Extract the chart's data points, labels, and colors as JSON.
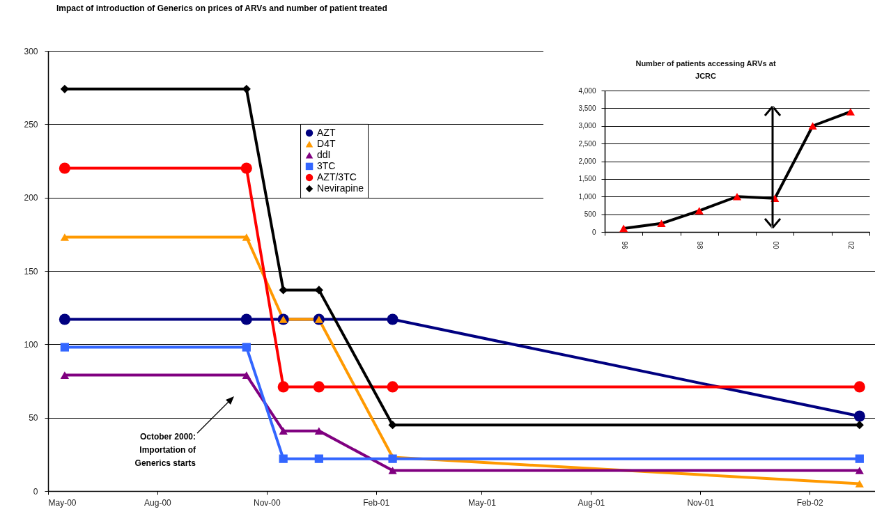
{
  "chart_data": [
    {
      "type": "line",
      "title": "Impact of introduction of Generics on prices of ARVs and number of patient treated",
      "x": [
        "2000-05-15",
        "2000-10-15",
        "2000-11-15",
        "2000-12-15",
        "2001-02-15",
        "2002-03-15"
      ],
      "xlim": [
        "2000-05-01",
        "2002-03-28"
      ],
      "xticks": [
        {
          "value": "2000-05-01",
          "label": "May-00"
        },
        {
          "value": "2000-08-01",
          "label": "Aug-00"
        },
        {
          "value": "2000-11-01",
          "label": "Nov-00"
        },
        {
          "value": "2001-02-01",
          "label": "Feb-01"
        },
        {
          "value": "2001-05-01",
          "label": "May-01"
        },
        {
          "value": "2001-08-01",
          "label": "Aug-01"
        },
        {
          "value": "2001-11-01",
          "label": "Nov-01"
        },
        {
          "value": "2002-02-01",
          "label": "Feb-02"
        }
      ],
      "ylim": [
        0,
        300
      ],
      "yticks": [
        0,
        50,
        100,
        150,
        200,
        250,
        300
      ],
      "grid": "y",
      "legend": "top",
      "line_style": "solid",
      "series": [
        {
          "name": "AZT",
          "color": "#000080",
          "marker": "circle",
          "values": [
            117,
            117,
            117,
            117,
            117,
            51
          ]
        },
        {
          "name": "D4T",
          "color": "#ff9900",
          "marker": "triangle",
          "values": [
            173,
            173,
            117,
            117,
            23,
            5
          ]
        },
        {
          "name": "ddI",
          "color": "#800080",
          "marker": "triangle",
          "values": [
            79,
            79,
            41,
            41,
            14,
            14
          ]
        },
        {
          "name": "3TC",
          "color": "#3366ff",
          "marker": "square",
          "values": [
            98,
            98,
            22,
            22,
            22,
            22
          ]
        },
        {
          "name": "AZT/3TC",
          "color": "#ff0000",
          "marker": "circle",
          "values": [
            220,
            220,
            71,
            71,
            71,
            71
          ]
        },
        {
          "name": "Nevirapine",
          "color": "#000000",
          "marker": "diamond",
          "values": [
            274,
            274,
            137,
            137,
            45,
            45
          ]
        }
      ],
      "annotations": [
        "October 2000:\nImportation of\nGenerics starts"
      ]
    },
    {
      "type": "line",
      "title": "Number of patients accessing ARVs at JCRC",
      "categories": [
        "96",
        null,
        "98",
        null,
        "00",
        null,
        "02"
      ],
      "ylim": [
        0,
        4000
      ],
      "yticks": [
        {
          "value": 0,
          "label": "0"
        },
        {
          "value": 500,
          "label": "500"
        },
        {
          "value": 1000,
          "label": "1,000"
        },
        {
          "value": 1500,
          "label": "1,500"
        },
        {
          "value": 2000,
          "label": "2,000"
        },
        {
          "value": 2500,
          "label": "2,500"
        },
        {
          "value": 3000,
          "label": "3,000"
        },
        {
          "value": 3500,
          "label": "3,500"
        },
        {
          "value": 4000,
          "label": "4,000"
        }
      ],
      "grid": "y",
      "marker": "triangle",
      "line_style": "solid",
      "series": [
        {
          "color": "#000000",
          "colors": [
            "#ff0000",
            "#ff0000",
            "#ff0000",
            "#ff0000",
            "#ff0000",
            "#ff0000",
            "#ff0000"
          ],
          "values": [
            100,
            240,
            600,
            1000,
            950,
            3000,
            3400
          ]
        }
      ]
    }
  ]
}
